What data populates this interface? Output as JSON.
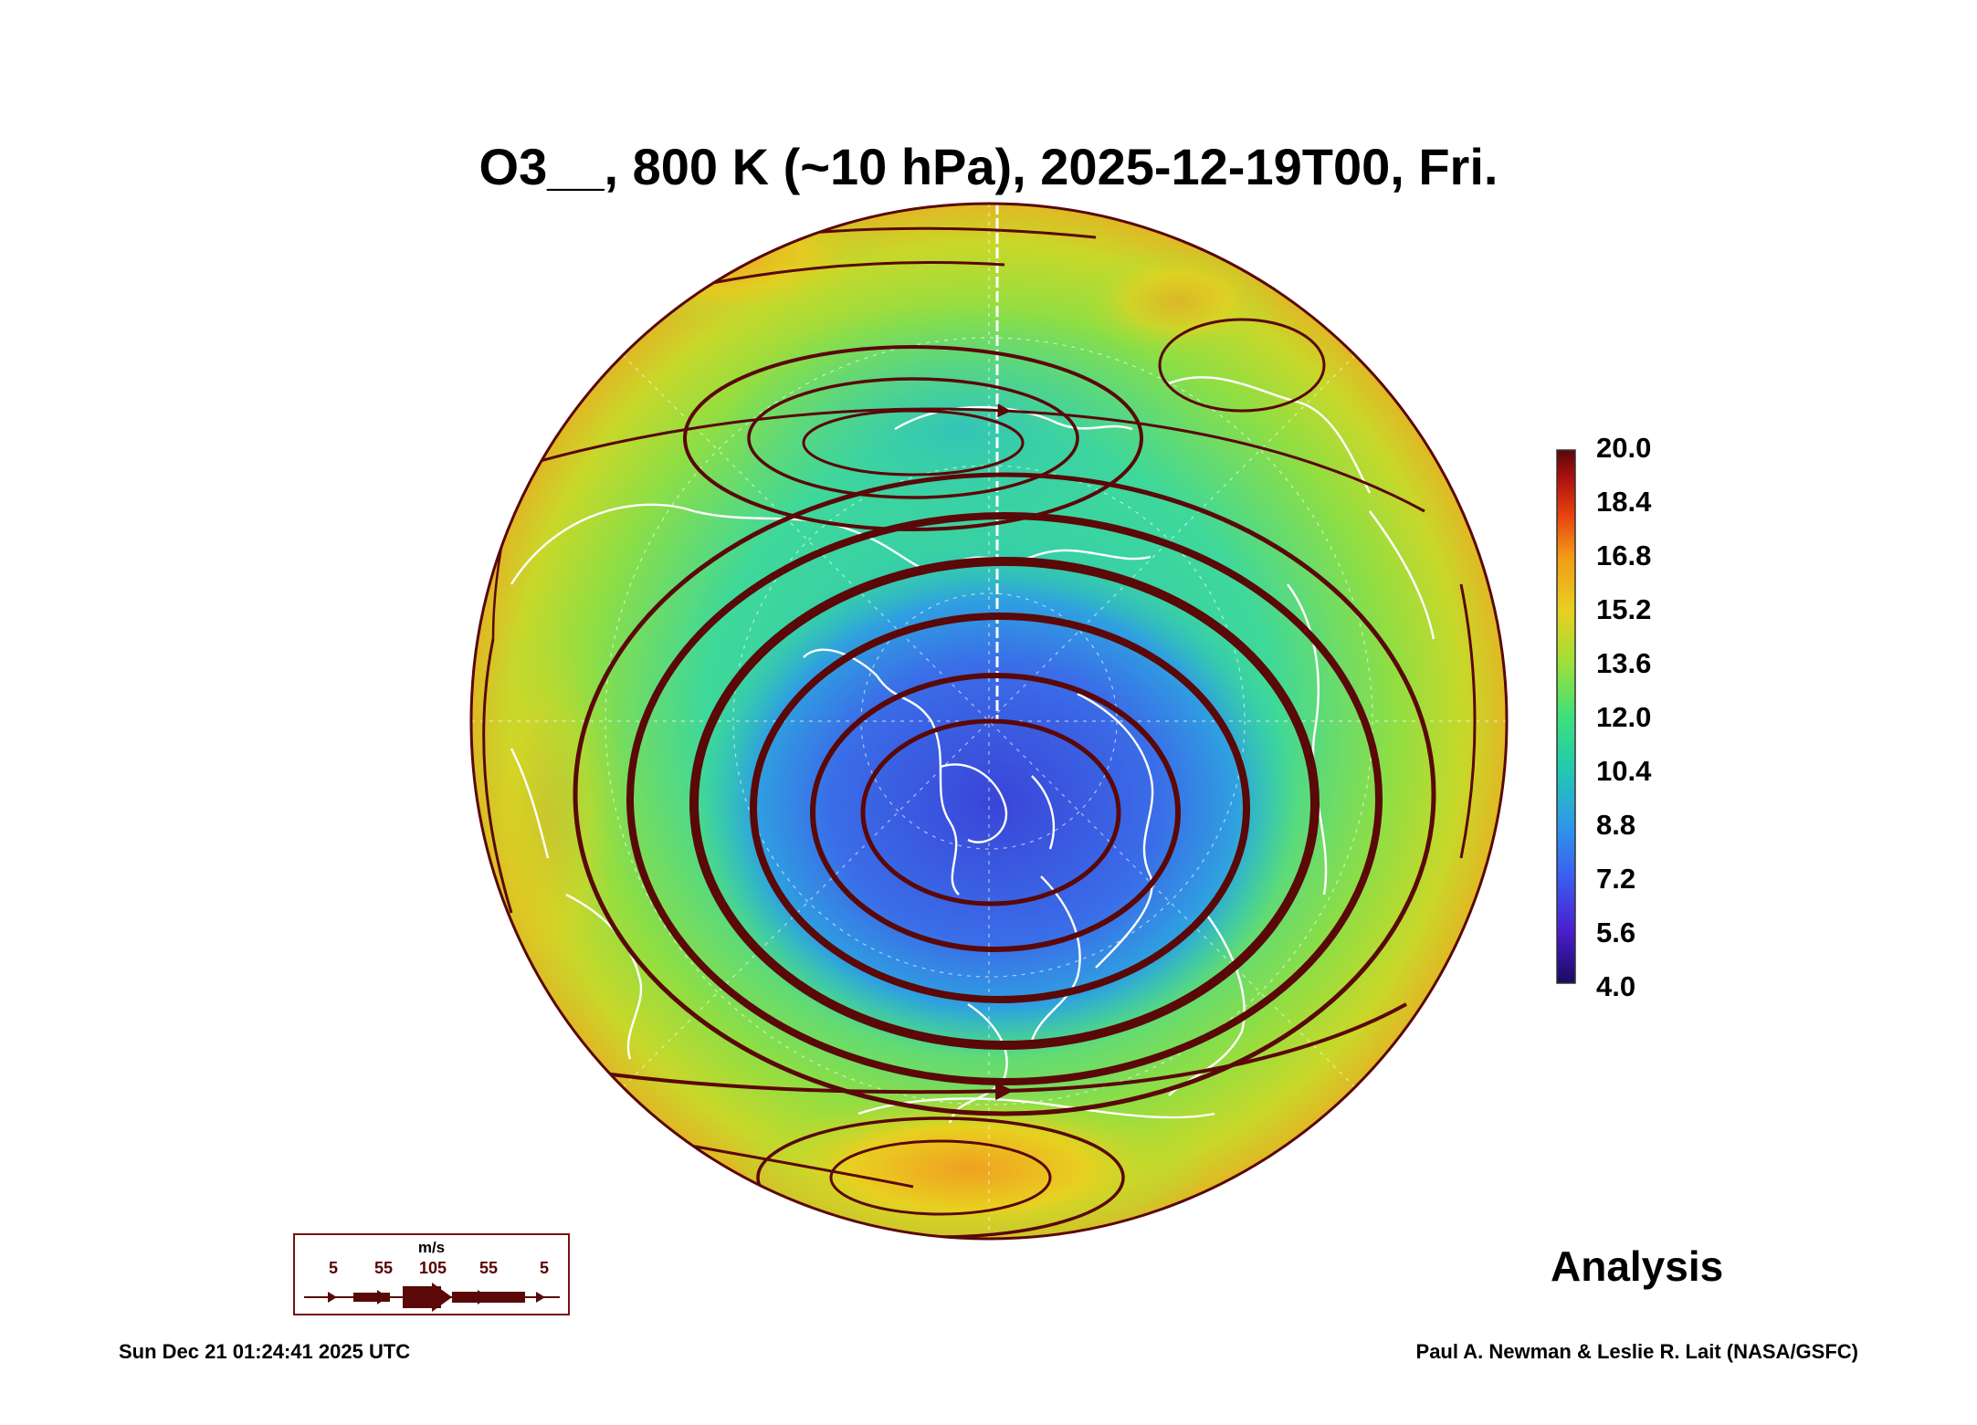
{
  "title": "O3__, 800 K (~10 hPa), 2025-12-19T00, Fri.",
  "colorbar": {
    "labels": [
      "20.0",
      "18.4",
      "16.8",
      "15.2",
      "13.6",
      "12.0",
      "10.4",
      "8.8",
      "7.2",
      "5.6",
      "4.0"
    ],
    "min": 4.0,
    "max": 20.0,
    "colors": [
      "#1a0a5e",
      "#4b1fd0",
      "#3b5ef0",
      "#2f9ae8",
      "#22c9b0",
      "#3ee07a",
      "#9de03a",
      "#e8d020",
      "#f29a18",
      "#e8400e",
      "#a81010",
      "#5a0808"
    ]
  },
  "wind_legend": {
    "unit": "m/s",
    "speeds": [
      "5",
      "55",
      "105",
      "55",
      "5"
    ]
  },
  "analysis_label": "Analysis",
  "footer": {
    "timestamp": "Sun Dec 21 01:24:41 2025 UTC",
    "credit": "Paul A. Newman & Leslie R. Lait (NASA/GSFC)"
  },
  "colors": {
    "streamline": "#5a0808",
    "coastline": "#ffffff",
    "vortex_core": "#3a45d8"
  }
}
